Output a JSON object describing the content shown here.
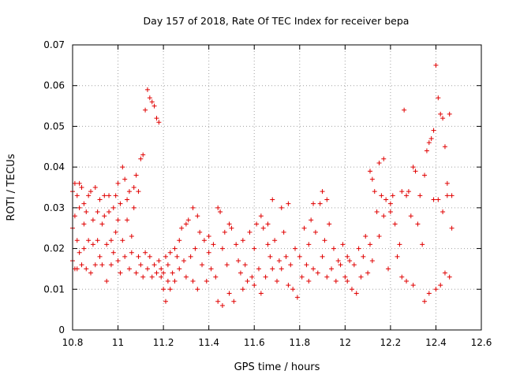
{
  "chart_data": {
    "type": "scatter",
    "title": "Day 157 of 2018, Rate Of TEC Index for receiver bepa",
    "xlabel": "GPS time / hours",
    "ylabel": "ROTI / TECUs",
    "xlim": [
      10.8,
      12.6
    ],
    "ylim": [
      0,
      0.07
    ],
    "xticks": [
      "10.8",
      "11",
      "11.2",
      "11.4",
      "11.6",
      "11.8",
      "12",
      "12.2",
      "12.4",
      "12.6"
    ],
    "yticks": [
      "0",
      "0.01",
      "0.02",
      "0.03",
      "0.04",
      "0.05",
      "0.06",
      "0.07"
    ],
    "grid": true,
    "marker": "+",
    "color": "#e00000",
    "series": [
      {
        "name": "ROTI",
        "points": [
          [
            10.8,
            0.034
          ],
          [
            10.8,
            0.025
          ],
          [
            10.8,
            0.017
          ],
          [
            10.81,
            0.015
          ],
          [
            10.81,
            0.036
          ],
          [
            10.81,
            0.028
          ],
          [
            10.82,
            0.033
          ],
          [
            10.82,
            0.022
          ],
          [
            10.82,
            0.015
          ],
          [
            10.83,
            0.036
          ],
          [
            10.83,
            0.03
          ],
          [
            10.83,
            0.019
          ],
          [
            10.84,
            0.016
          ],
          [
            10.84,
            0.035
          ],
          [
            10.85,
            0.031
          ],
          [
            10.85,
            0.026
          ],
          [
            10.85,
            0.02
          ],
          [
            10.86,
            0.015
          ],
          [
            10.86,
            0.029
          ],
          [
            10.87,
            0.033
          ],
          [
            10.87,
            0.022
          ],
          [
            10.88,
            0.014
          ],
          [
            10.88,
            0.034
          ],
          [
            10.89,
            0.027
          ],
          [
            10.89,
            0.021
          ],
          [
            10.9,
            0.016
          ],
          [
            10.9,
            0.035
          ],
          [
            10.91,
            0.029
          ],
          [
            10.91,
            0.022
          ],
          [
            10.92,
            0.018
          ],
          [
            10.92,
            0.032
          ],
          [
            10.93,
            0.026
          ],
          [
            10.93,
            0.016
          ],
          [
            10.94,
            0.033
          ],
          [
            10.94,
            0.028
          ],
          [
            10.95,
            0.021
          ],
          [
            10.95,
            0.012
          ],
          [
            10.96,
            0.033
          ],
          [
            10.96,
            0.029
          ],
          [
            10.97,
            0.022
          ],
          [
            10.97,
            0.016
          ],
          [
            10.98,
            0.03
          ],
          [
            10.98,
            0.019
          ],
          [
            10.99,
            0.033
          ],
          [
            10.99,
            0.024
          ],
          [
            11.0,
            0.036
          ],
          [
            11.0,
            0.017
          ],
          [
            11.0,
            0.027
          ],
          [
            11.01,
            0.031
          ],
          [
            11.01,
            0.014
          ],
          [
            11.02,
            0.04
          ],
          [
            11.02,
            0.022
          ],
          [
            11.03,
            0.037
          ],
          [
            11.03,
            0.018
          ],
          [
            11.04,
            0.032
          ],
          [
            11.04,
            0.027
          ],
          [
            11.05,
            0.015
          ],
          [
            11.05,
            0.034
          ],
          [
            11.06,
            0.023
          ],
          [
            11.06,
            0.019
          ],
          [
            11.07,
            0.03
          ],
          [
            11.07,
            0.035
          ],
          [
            11.08,
            0.014
          ],
          [
            11.08,
            0.038
          ],
          [
            11.09,
            0.018
          ],
          [
            11.09,
            0.034
          ],
          [
            11.1,
            0.042
          ],
          [
            11.1,
            0.016
          ],
          [
            11.11,
            0.043
          ],
          [
            11.11,
            0.013
          ],
          [
            11.12,
            0.054
          ],
          [
            11.12,
            0.019
          ],
          [
            11.13,
            0.059
          ],
          [
            11.13,
            0.015
          ],
          [
            11.14,
            0.057
          ],
          [
            11.14,
            0.018
          ],
          [
            11.15,
            0.056
          ],
          [
            11.15,
            0.013
          ],
          [
            11.16,
            0.055
          ],
          [
            11.16,
            0.016
          ],
          [
            11.17,
            0.052
          ],
          [
            11.17,
            0.014
          ],
          [
            11.18,
            0.051
          ],
          [
            11.18,
            0.017
          ],
          [
            11.19,
            0.015
          ],
          [
            11.19,
            0.013
          ],
          [
            11.2,
            0.014
          ],
          [
            11.2,
            0.01
          ],
          [
            11.21,
            0.018
          ],
          [
            11.21,
            0.007
          ],
          [
            11.22,
            0.016
          ],
          [
            11.22,
            0.012
          ],
          [
            11.23,
            0.019
          ],
          [
            11.23,
            0.01
          ],
          [
            11.24,
            0.014
          ],
          [
            11.25,
            0.02
          ],
          [
            11.25,
            0.012
          ],
          [
            11.26,
            0.018
          ],
          [
            11.27,
            0.022
          ],
          [
            11.27,
            0.015
          ],
          [
            11.28,
            0.025
          ],
          [
            11.29,
            0.017
          ],
          [
            11.3,
            0.026
          ],
          [
            11.3,
            0.013
          ],
          [
            11.31,
            0.027
          ],
          [
            11.32,
            0.018
          ],
          [
            11.33,
            0.03
          ],
          [
            11.33,
            0.012
          ],
          [
            11.34,
            0.02
          ],
          [
            11.35,
            0.028
          ],
          [
            11.35,
            0.01
          ],
          [
            11.36,
            0.024
          ],
          [
            11.37,
            0.016
          ],
          [
            11.38,
            0.022
          ],
          [
            11.39,
            0.012
          ],
          [
            11.4,
            0.019
          ],
          [
            11.4,
            0.023
          ],
          [
            11.41,
            0.015
          ],
          [
            11.42,
            0.021
          ],
          [
            11.43,
            0.013
          ],
          [
            11.44,
            0.03
          ],
          [
            11.44,
            0.007
          ],
          [
            11.45,
            0.029
          ],
          [
            11.46,
            0.02
          ],
          [
            11.46,
            0.006
          ],
          [
            11.47,
            0.024
          ],
          [
            11.48,
            0.016
          ],
          [
            11.49,
            0.026
          ],
          [
            11.49,
            0.009
          ],
          [
            11.5,
            0.025
          ],
          [
            11.51,
            0.007
          ],
          [
            11.52,
            0.021
          ],
          [
            11.53,
            0.017
          ],
          [
            11.54,
            0.014
          ],
          [
            11.55,
            0.022
          ],
          [
            11.55,
            0.01
          ],
          [
            11.56,
            0.016
          ],
          [
            11.57,
            0.012
          ],
          [
            11.58,
            0.024
          ],
          [
            11.59,
            0.013
          ],
          [
            11.6,
            0.02
          ],
          [
            11.6,
            0.011
          ],
          [
            11.61,
            0.026
          ],
          [
            11.62,
            0.015
          ],
          [
            11.63,
            0.028
          ],
          [
            11.63,
            0.009
          ],
          [
            11.64,
            0.025
          ],
          [
            11.65,
            0.013
          ],
          [
            11.66,
            0.021
          ],
          [
            11.66,
            0.026
          ],
          [
            11.67,
            0.018
          ],
          [
            11.68,
            0.032
          ],
          [
            11.68,
            0.015
          ],
          [
            11.69,
            0.022
          ],
          [
            11.7,
            0.012
          ],
          [
            11.71,
            0.017
          ],
          [
            11.72,
            0.03
          ],
          [
            11.72,
            0.015
          ],
          [
            11.73,
            0.024
          ],
          [
            11.74,
            0.018
          ],
          [
            11.75,
            0.031
          ],
          [
            11.75,
            0.011
          ],
          [
            11.76,
            0.016
          ],
          [
            11.77,
            0.01
          ],
          [
            11.78,
            0.02
          ],
          [
            11.79,
            0.008
          ],
          [
            11.8,
            0.018
          ],
          [
            11.81,
            0.013
          ],
          [
            11.82,
            0.025
          ],
          [
            11.83,
            0.016
          ],
          [
            11.84,
            0.021
          ],
          [
            11.84,
            0.012
          ],
          [
            11.85,
            0.027
          ],
          [
            11.86,
            0.031
          ],
          [
            11.86,
            0.015
          ],
          [
            11.87,
            0.024
          ],
          [
            11.88,
            0.014
          ],
          [
            11.89,
            0.031
          ],
          [
            11.9,
            0.018
          ],
          [
            11.9,
            0.034
          ],
          [
            11.91,
            0.022
          ],
          [
            11.92,
            0.032
          ],
          [
            11.92,
            0.013
          ],
          [
            11.93,
            0.026
          ],
          [
            11.94,
            0.015
          ],
          [
            11.95,
            0.02
          ],
          [
            11.96,
            0.012
          ],
          [
            11.97,
            0.017
          ],
          [
            11.98,
            0.016
          ],
          [
            11.99,
            0.021
          ],
          [
            12.0,
            0.013
          ],
          [
            12.01,
            0.018
          ],
          [
            12.01,
            0.012
          ],
          [
            12.02,
            0.017
          ],
          [
            12.03,
            0.01
          ],
          [
            12.04,
            0.016
          ],
          [
            12.05,
            0.009
          ],
          [
            12.06,
            0.02
          ],
          [
            12.07,
            0.013
          ],
          [
            12.08,
            0.018
          ],
          [
            12.09,
            0.023
          ],
          [
            12.1,
            0.014
          ],
          [
            12.11,
            0.039
          ],
          [
            12.11,
            0.021
          ],
          [
            12.12,
            0.037
          ],
          [
            12.12,
            0.017
          ],
          [
            12.13,
            0.034
          ],
          [
            12.14,
            0.029
          ],
          [
            12.15,
            0.041
          ],
          [
            12.15,
            0.023
          ],
          [
            12.16,
            0.033
          ],
          [
            12.17,
            0.042
          ],
          [
            12.17,
            0.028
          ],
          [
            12.18,
            0.032
          ],
          [
            12.19,
            0.015
          ],
          [
            12.2,
            0.031
          ],
          [
            12.2,
            0.029
          ],
          [
            12.21,
            0.033
          ],
          [
            12.22,
            0.026
          ],
          [
            12.23,
            0.018
          ],
          [
            12.24,
            0.021
          ],
          [
            12.25,
            0.034
          ],
          [
            12.25,
            0.013
          ],
          [
            12.26,
            0.054
          ],
          [
            12.27,
            0.033
          ],
          [
            12.27,
            0.012
          ],
          [
            12.28,
            0.034
          ],
          [
            12.29,
            0.028
          ],
          [
            12.3,
            0.04
          ],
          [
            12.3,
            0.011
          ],
          [
            12.31,
            0.039
          ],
          [
            12.32,
            0.026
          ],
          [
            12.33,
            0.033
          ],
          [
            12.34,
            0.021
          ],
          [
            12.35,
            0.038
          ],
          [
            12.35,
            0.007
          ],
          [
            12.36,
            0.044
          ],
          [
            12.37,
            0.046
          ],
          [
            12.37,
            0.009
          ],
          [
            12.38,
            0.047
          ],
          [
            12.39,
            0.049
          ],
          [
            12.39,
            0.032
          ],
          [
            12.4,
            0.065
          ],
          [
            12.4,
            0.01
          ],
          [
            12.41,
            0.057
          ],
          [
            12.41,
            0.032
          ],
          [
            12.42,
            0.053
          ],
          [
            12.42,
            0.011
          ],
          [
            12.43,
            0.052
          ],
          [
            12.43,
            0.029
          ],
          [
            12.44,
            0.045
          ],
          [
            12.44,
            0.014
          ],
          [
            12.45,
            0.036
          ],
          [
            12.45,
            0.033
          ],
          [
            12.46,
            0.053
          ],
          [
            12.46,
            0.013
          ],
          [
            12.47,
            0.025
          ],
          [
            12.47,
            0.033
          ]
        ]
      }
    ]
  }
}
